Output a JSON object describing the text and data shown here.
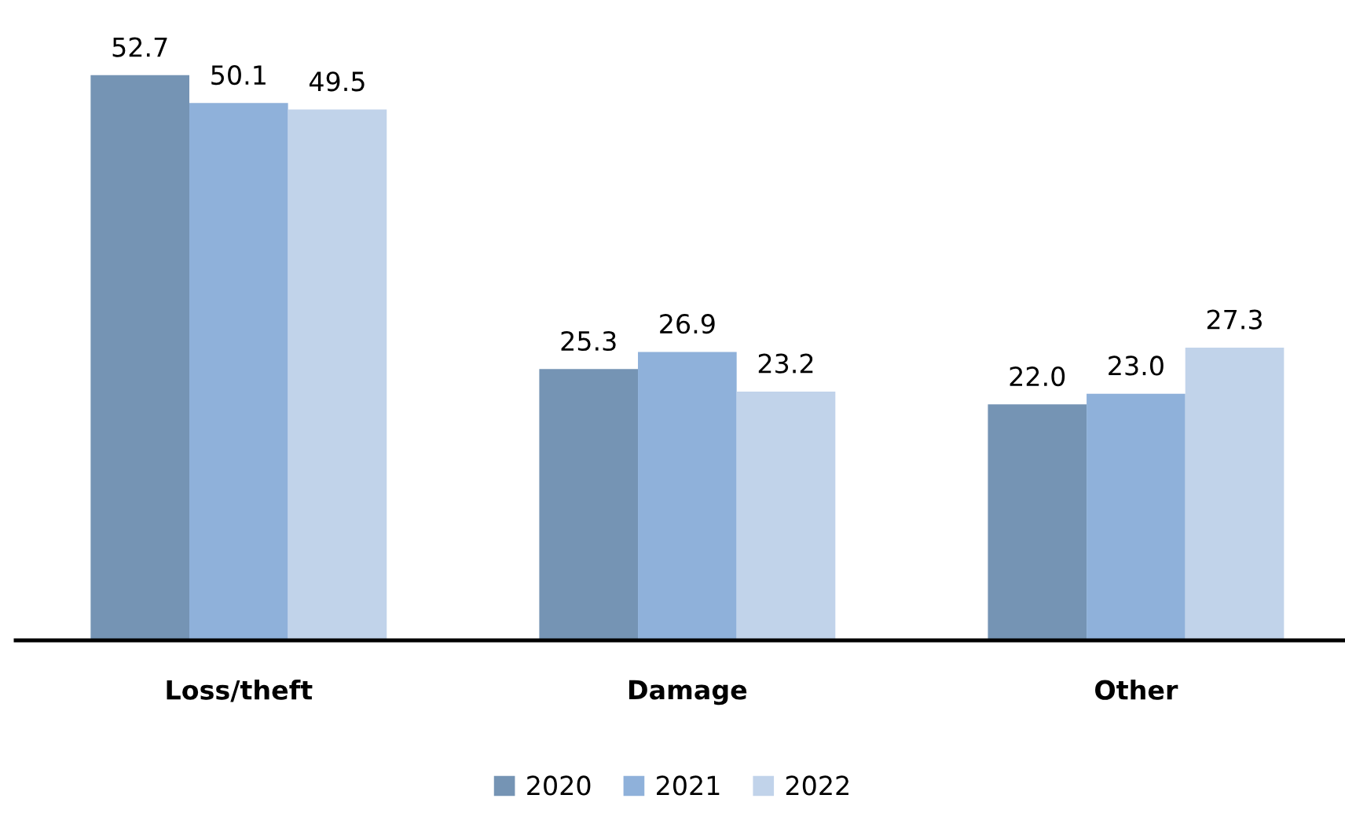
{
  "chart_data": {
    "type": "bar",
    "categories": [
      "Loss/theft",
      "Damage",
      "Other"
    ],
    "series": [
      {
        "name": "2020",
        "color": "#7594b4",
        "values": [
          52.7,
          25.3,
          22.0
        ],
        "value_labels": [
          "52.7",
          "25.3",
          "22.0"
        ]
      },
      {
        "name": "2021",
        "color": "#8fb1da",
        "values": [
          50.1,
          26.9,
          23.0
        ],
        "value_labels": [
          "50.1",
          "26.9",
          "23.0"
        ]
      },
      {
        "name": "2022",
        "color": "#c1d3ea",
        "values": [
          49.5,
          23.2,
          27.3
        ],
        "value_labels": [
          "49.5",
          "23.2",
          "27.3"
        ]
      }
    ],
    "legend": "bottom",
    "grid": false
  }
}
